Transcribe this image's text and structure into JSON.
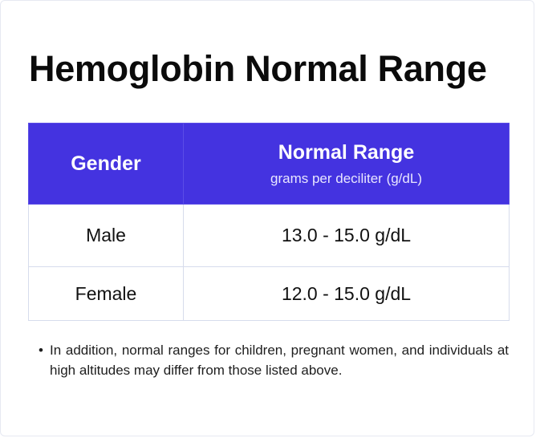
{
  "title": "Hemoglobin Normal Range",
  "table": {
    "headers": {
      "gender": "Gender",
      "range_title": "Normal Range",
      "range_unit": "grams per deciliter (g/dL)"
    },
    "rows": [
      {
        "gender": "Male",
        "range": "13.0 - 15.0 g/dL"
      },
      {
        "gender": "Female",
        "range": "12.0 - 15.0 g/dL"
      }
    ]
  },
  "note": {
    "bullet": "•",
    "text": "In addition, normal ranges for children, pregnant women, and individuals at high altitudes may differ from those listed above."
  },
  "colors": {
    "header_background": "#4433e0",
    "border": "#d6dcec"
  }
}
